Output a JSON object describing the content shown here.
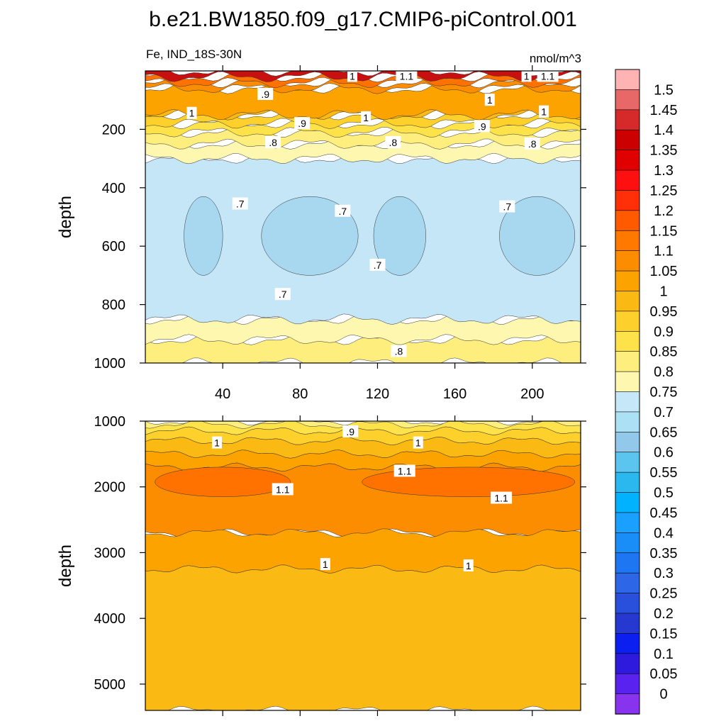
{
  "figure": {
    "title": "b.e21.BW1850.f09_g17.CMIP6-piControl.001",
    "left_label": "Fe, IND_18S-30N",
    "right_label": "nmol/m^3"
  },
  "chart_data": [
    {
      "type": "heatmap",
      "panel": "upper",
      "variable": "Fe",
      "region": "IND_18S-30N",
      "units": "nmol/m^3",
      "xlabel": "",
      "ylabel": "depth",
      "xlim": [
        0,
        225
      ],
      "ylim": [
        1000,
        0
      ],
      "y_reversed": true,
      "xticks": [
        40,
        80,
        120,
        160,
        200
      ],
      "yticks": [
        200,
        400,
        600,
        800,
        1000
      ],
      "layers": [
        {
          "level": 0.8,
          "depth_top": 920,
          "depth_bottom": 1000,
          "note": "deep edge"
        },
        {
          "level": 0.75,
          "depth_top": 850,
          "depth_bottom": 920
        },
        {
          "level": 0.7,
          "depth_top": 300,
          "depth_bottom": 850
        },
        {
          "level": 0.65,
          "depth_top": 430,
          "depth_bottom": 700,
          "note": "patches"
        },
        {
          "level": 0.75,
          "depth_top": 250,
          "depth_bottom": 300
        },
        {
          "level": 0.8,
          "depth_top": 210,
          "depth_bottom": 250
        },
        {
          "level": 0.85,
          "depth_top": 180,
          "depth_bottom": 210
        },
        {
          "level": 0.9,
          "depth_top": 150,
          "depth_bottom": 180
        },
        {
          "level": 0.95,
          "depth_top": 100,
          "depth_bottom": 150
        },
        {
          "level": 1.0,
          "depth_top": 60,
          "depth_bottom": 150
        },
        {
          "level": 1.05,
          "depth_top": 40,
          "depth_bottom": 60
        },
        {
          "level": 1.1,
          "depth_top": 20,
          "depth_bottom": 40
        },
        {
          "level": 1.3,
          "depth_top": 0,
          "depth_bottom": 20
        }
      ],
      "contour_labels": [
        {
          "text": "1",
          "x": 107,
          "y": 18
        },
        {
          "text": "1.1",
          "x": 135,
          "y": 18
        },
        {
          "text": "1",
          "x": 197,
          "y": 18
        },
        {
          "text": "1.1",
          "x": 208,
          "y": 18
        },
        {
          "text": ".9",
          "x": 62,
          "y": 80
        },
        {
          "text": "1",
          "x": 24,
          "y": 145
        },
        {
          "text": "1",
          "x": 178,
          "y": 100
        },
        {
          "text": "1",
          "x": 206,
          "y": 140
        },
        {
          "text": ".9",
          "x": 81,
          "y": 180
        },
        {
          "text": "1",
          "x": 114,
          "y": 160
        },
        {
          "text": ".9",
          "x": 174,
          "y": 190
        },
        {
          "text": ".8",
          "x": 66,
          "y": 245
        },
        {
          "text": ".8",
          "x": 128,
          "y": 245
        },
        {
          "text": ".8",
          "x": 200,
          "y": 250
        },
        {
          "text": ".7",
          "x": 49,
          "y": 455
        },
        {
          "text": ".7",
          "x": 102,
          "y": 480
        },
        {
          "text": ".7",
          "x": 187,
          "y": 465
        },
        {
          "text": ".7",
          "x": 120,
          "y": 665
        },
        {
          "text": ".7",
          "x": 71,
          "y": 765
        },
        {
          "text": ".8",
          "x": 131,
          "y": 960
        }
      ]
    },
    {
      "type": "heatmap",
      "panel": "lower",
      "variable": "Fe",
      "units": "nmol/m^3",
      "xlabel": "",
      "ylabel": "depth",
      "xlim": [
        0,
        225
      ],
      "ylim": [
        5400,
        1000
      ],
      "y_reversed": true,
      "yticks": [
        1000,
        2000,
        3000,
        4000,
        5000
      ],
      "layers": [
        {
          "level": 0.8,
          "depth_top": 1000,
          "depth_bottom": 1150
        },
        {
          "level": 0.85,
          "depth_top": 1050,
          "depth_bottom": 1150
        },
        {
          "level": 0.9,
          "depth_top": 1150,
          "depth_bottom": 1300
        },
        {
          "level": 0.95,
          "depth_top": 1300,
          "depth_bottom": 1500
        },
        {
          "level": 1.0,
          "depth_top": 1500,
          "depth_bottom": 1700
        },
        {
          "level": 1.05,
          "depth_top": 1700,
          "depth_bottom": 2700
        },
        {
          "level": 1.1,
          "depth_top": 1700,
          "depth_bottom": 2150,
          "note": "two lenses"
        },
        {
          "level": 1.0,
          "depth_top": 2700,
          "depth_bottom": 3250
        },
        {
          "level": 0.95,
          "depth_top": 3250,
          "depth_bottom": 5400
        }
      ],
      "contour_labels": [
        {
          "text": ".9",
          "x": 106,
          "y": 1160
        },
        {
          "text": "1",
          "x": 37,
          "y": 1330
        },
        {
          "text": "1",
          "x": 141,
          "y": 1330
        },
        {
          "text": "1.1",
          "x": 134,
          "y": 1760
        },
        {
          "text": "1.1",
          "x": 71,
          "y": 2040
        },
        {
          "text": "1.1",
          "x": 184,
          "y": 2170
        },
        {
          "text": "1",
          "x": 93,
          "y": 3180
        },
        {
          "text": "1",
          "x": 167,
          "y": 3200
        }
      ]
    }
  ],
  "colorbar": {
    "labels": [
      "1.5",
      "1.45",
      "1.4",
      "1.35",
      "1.3",
      "1.25",
      "1.2",
      "1.15",
      "1.1",
      "1.05",
      "1",
      "0.95",
      "0.9",
      "0.85",
      "0.8",
      "0.75",
      "0.7",
      "0.65",
      "0.6",
      "0.55",
      "0.5",
      "0.45",
      "0.4",
      "0.35",
      "0.3",
      "0.25",
      "0.2",
      "0.15",
      "0.1",
      "0.05",
      "0"
    ],
    "colors_top_to_bottom": [
      "#ffb3b3",
      "#e86868",
      "#d62a2a",
      "#cc0000",
      "#e00000",
      "#ff1010",
      "#ff3008",
      "#ff5a00",
      "#ff7800",
      "#fc8d00",
      "#fca300",
      "#fbb913",
      "#fdd02c",
      "#fde24a",
      "#fdee7e",
      "#fdf7b0",
      "#c6e7f7",
      "#ace0f4",
      "#92c8ea",
      "#5bc4ef",
      "#2bb8ef",
      "#00b2ff",
      "#1aa0ff",
      "#1a8ef8",
      "#1e76f2",
      "#2d66e6",
      "#2950dd",
      "#2538d0",
      "#0a1ff0",
      "#2d1adc",
      "#5a22ee",
      "#8833ee"
    ]
  }
}
